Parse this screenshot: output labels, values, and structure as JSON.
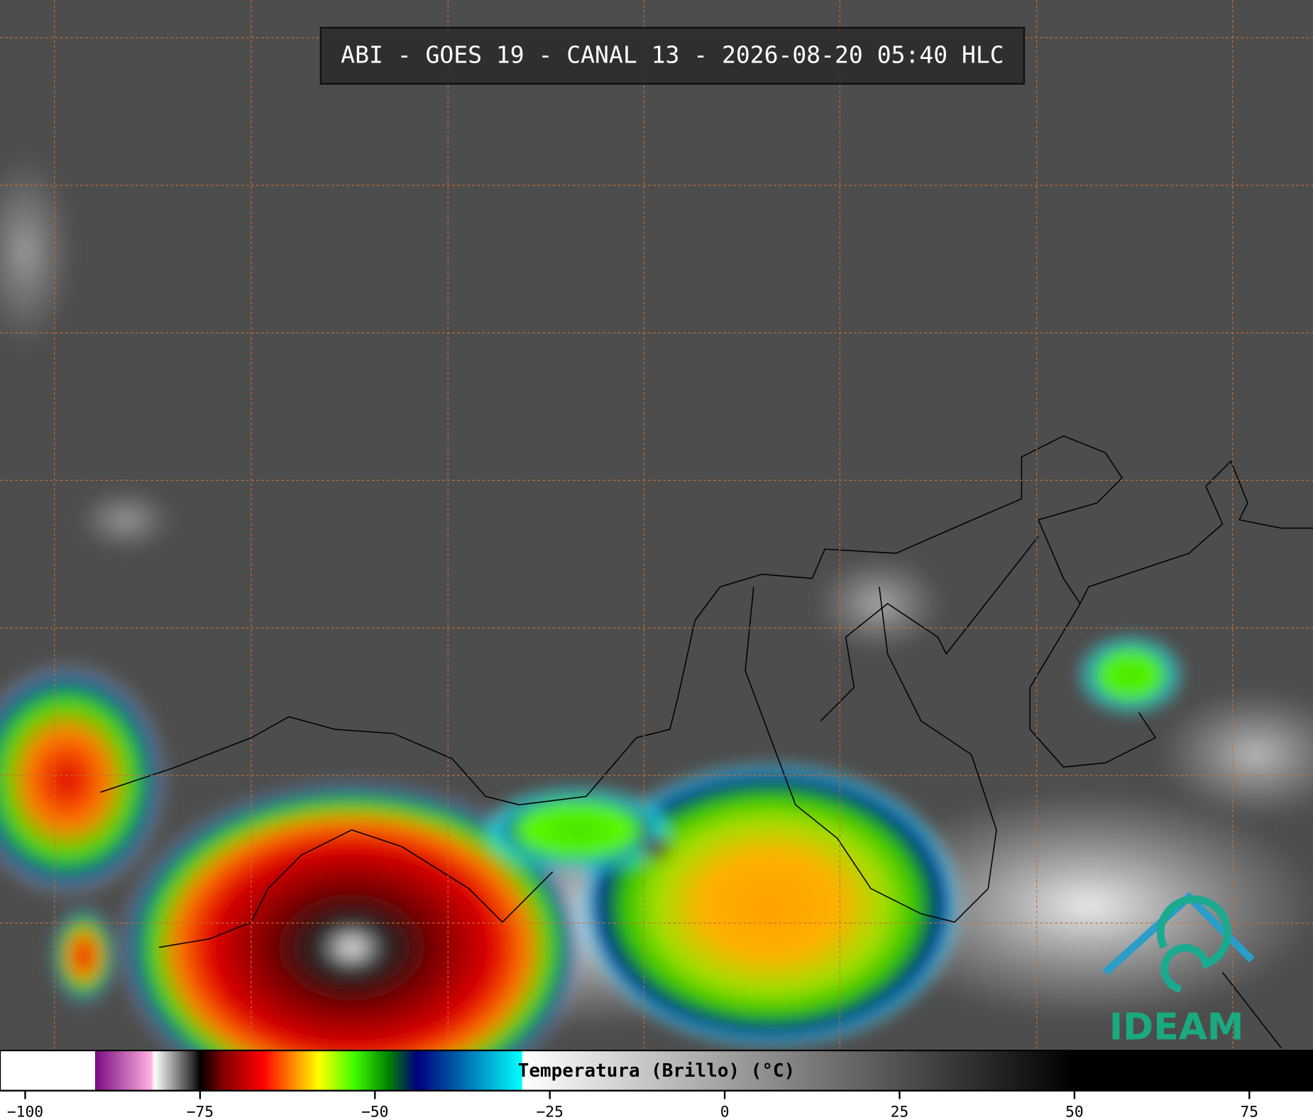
{
  "map": {
    "title": "ABI - GOES 19 - CANAL 13 - 2026-08-20 05:40 HLC",
    "logo": "IDEAM",
    "colorbar": {
      "label": "Temperatura (Brillo) (°C)",
      "clim": [
        -103.6,
        84.1
      ],
      "ticks": [
        {
          "value": -100,
          "label": "−100"
        },
        {
          "value": -75,
          "label": "−75"
        },
        {
          "value": -50,
          "label": "−50"
        },
        {
          "value": -25,
          "label": "−25"
        },
        0,
        25,
        50,
        75
      ],
      "stops": [
        -103.6,
        -90,
        -90,
        -82,
        -81.5,
        -76,
        -75,
        -72,
        -66,
        -61,
        -58,
        -53,
        -48,
        -44,
        -39,
        -29,
        -28.9,
        50,
        84.1
      ],
      "colors": [
        "#ffffff",
        "#ffffff",
        "#7a0a80",
        "#ffb0e0",
        "#ffffff",
        "#303030",
        "#000000",
        "#7a0000",
        "#ff0000",
        "#ffa000",
        "#ffff00",
        "#40ff00",
        "#008000",
        "#000080",
        "#0050a0",
        "#00ffff",
        "#ffffff",
        "#000000",
        "#000000"
      ]
    }
  }
}
